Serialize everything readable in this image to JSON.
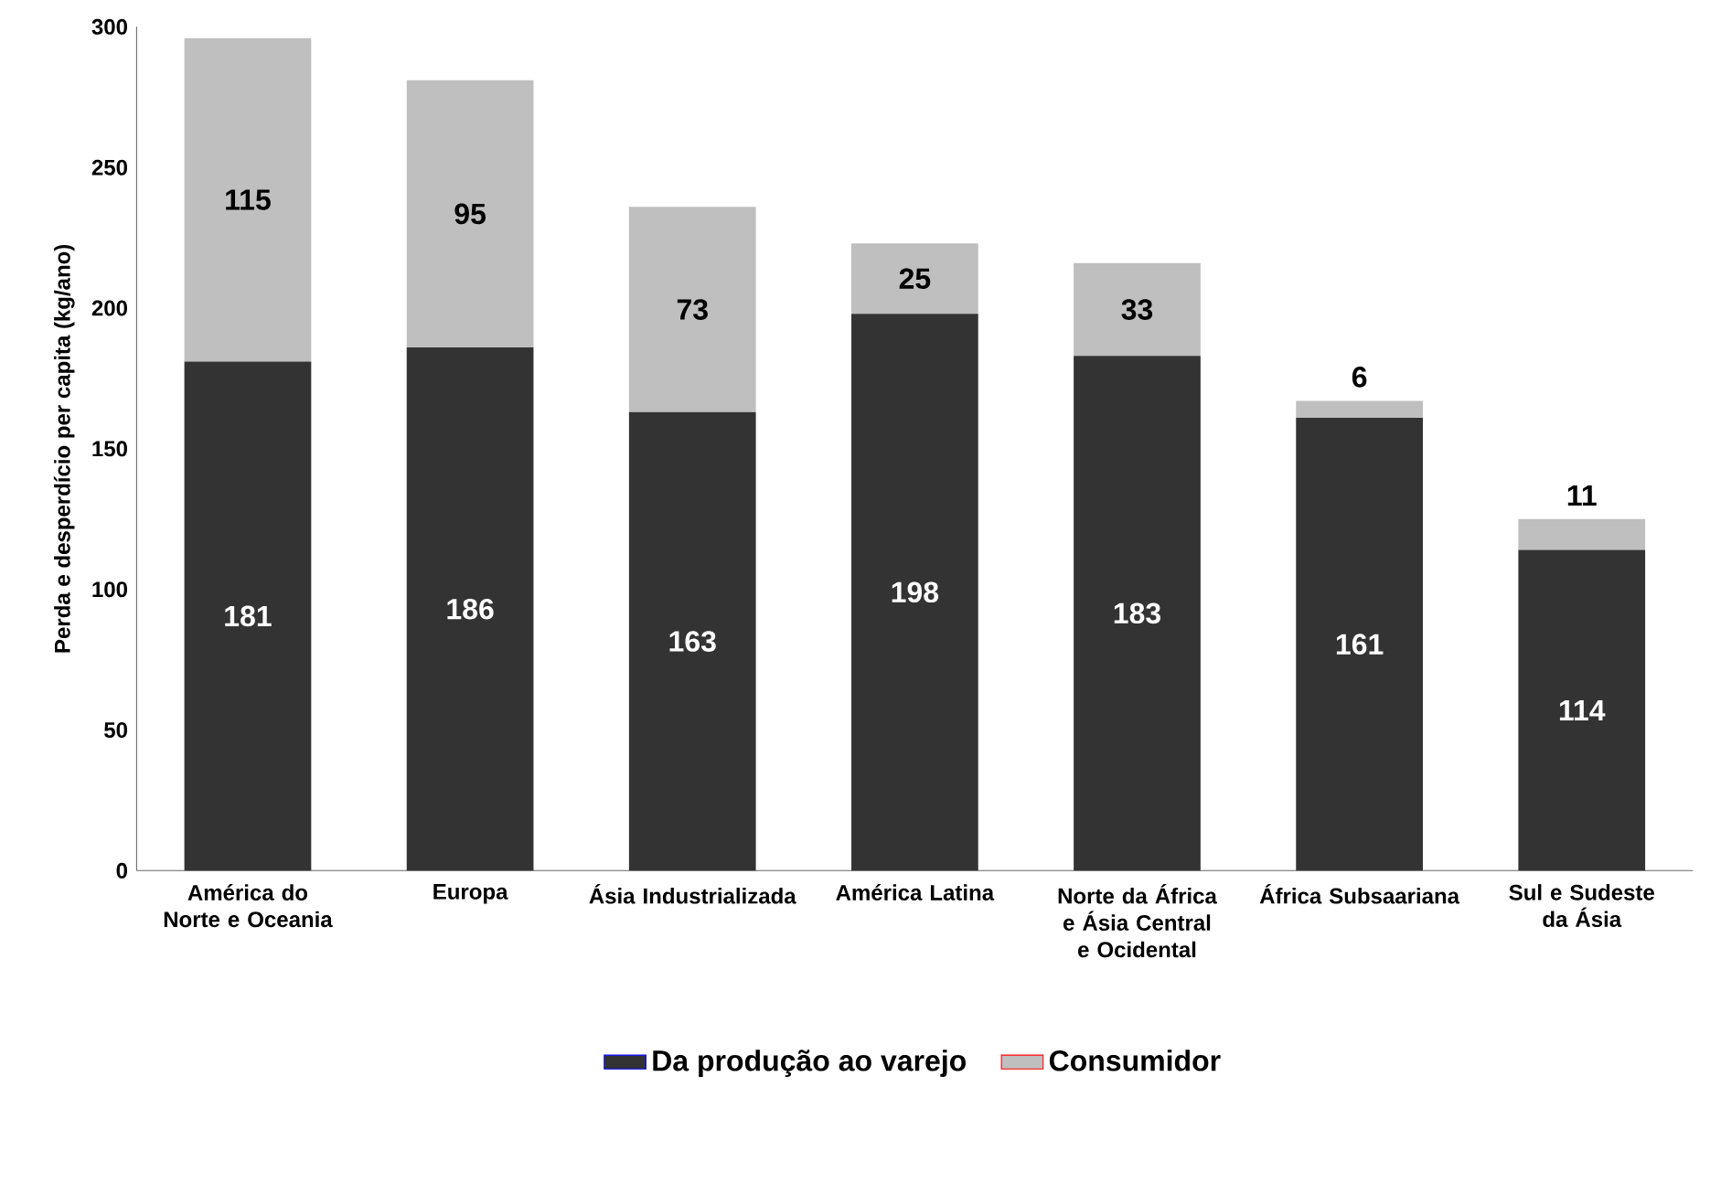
{
  "chart_data": {
    "type": "bar",
    "stacked": true,
    "ylabel": "Perda e desperdício per capita (kg/ano)",
    "categories": [
      "América do Norte e Oceania",
      "Europa",
      "Ásia Industrializada",
      "América Latina",
      "Norte da África e Ásia Central e Ocidental",
      "África Subsaariana",
      "Sul e Sudeste da Ásia"
    ],
    "series": [
      {
        "name": "Da produção ao varejo",
        "color": "#333333",
        "values": [
          181,
          186,
          163,
          198,
          183,
          161,
          114
        ]
      },
      {
        "name": "Consumidor",
        "color": "#bfbfbf",
        "values": [
          115,
          95,
          73,
          25,
          33,
          6,
          11
        ]
      }
    ],
    "ylim": [
      0,
      300
    ],
    "yticks": [
      0,
      50,
      100,
      150,
      200,
      250,
      300
    ],
    "grid": false,
    "data_labels": true,
    "legend": "bottom"
  }
}
